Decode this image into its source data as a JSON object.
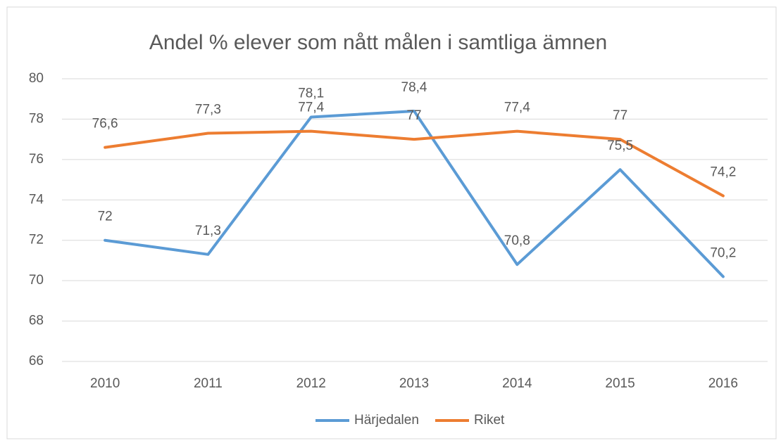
{
  "chart_data": {
    "type": "line",
    "title": "Andel % elever som nått målen i samtliga ämnen",
    "categories": [
      "2010",
      "2011",
      "2012",
      "2013",
      "2014",
      "2015",
      "2016"
    ],
    "series": [
      {
        "name": "Härjedalen",
        "color": "#5b9bd5",
        "values": [
          72,
          71.3,
          78.1,
          78.4,
          70.8,
          75.5,
          70.2
        ],
        "value_labels": [
          "72",
          "71,3",
          "78,1",
          "78,4",
          "70,8",
          "75,5",
          "70,2"
        ]
      },
      {
        "name": "Riket",
        "color": "#ed7d31",
        "values": [
          76.6,
          77.3,
          77.4,
          77,
          77.4,
          77,
          74.2
        ],
        "value_labels": [
          "76,6",
          "77,3",
          "77,4",
          "77",
          "77,4",
          "77",
          "74,2"
        ]
      }
    ],
    "ylim": [
      66,
      80
    ],
    "yticks": [
      66,
      68,
      70,
      72,
      74,
      76,
      78,
      80
    ],
    "grid": true,
    "legend": "bottom"
  }
}
